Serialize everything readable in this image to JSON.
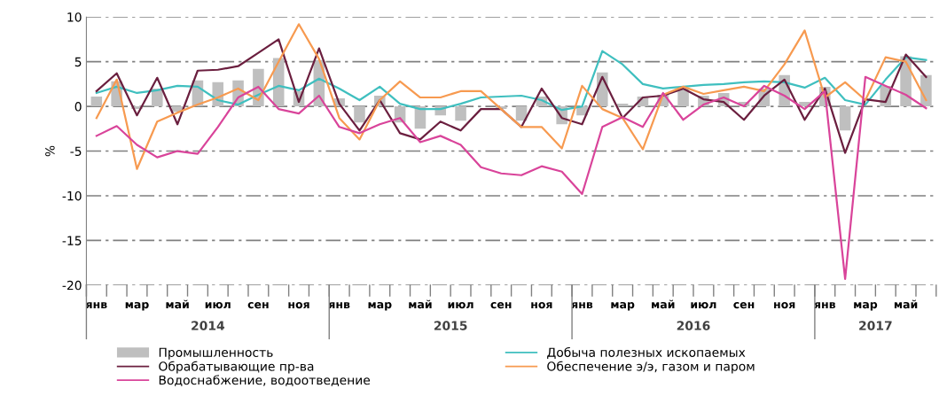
{
  "chart_data": {
    "type": "bar",
    "ylabel": "%",
    "categories": [
      "янв",
      null,
      "мар",
      null,
      "май",
      null,
      "июл",
      null,
      "сен",
      null,
      "ноя",
      null,
      "янв",
      null,
      "мар",
      null,
      "май",
      null,
      "июл",
      null,
      "сен",
      null,
      "ноя",
      null,
      "янв",
      null,
      "мар",
      null,
      "май",
      null,
      "июл",
      null,
      "сен",
      null,
      "ноя",
      null,
      "янв",
      null,
      "мар",
      null,
      "май",
      null
    ],
    "annotations": [
      "2014",
      "2015",
      "2016",
      "2017"
    ],
    "ylim": [
      -20,
      10
    ],
    "yticks": [
      -20,
      -15,
      -10,
      -5,
      0,
      5,
      10
    ],
    "grid": "y",
    "legend": "bottom",
    "series": [
      {
        "name": "Промышленность",
        "color": "#bfbfbf",
        "values": [
          1.1,
          2.8,
          -0.3,
          2.0,
          -0.6,
          2.9,
          2.7,
          2.9,
          4.2,
          5.4,
          1.7,
          5.2,
          0.9,
          -1.8,
          1.2,
          -1.8,
          -2.5,
          -1.0,
          -1.6,
          null,
          -0.3,
          -1.6,
          1.1,
          -2.0,
          -1.0,
          3.8,
          0.3,
          1.1,
          1.3,
          2.0,
          1.2,
          1.5,
          0.5,
          2.0,
          3.5,
          0.5,
          2.2,
          -2.7,
          null,
          2.3,
          5.6,
          3.5
        ]
      },
      {
        "name": "Добыча полезных ископаемых",
        "type": "line",
        "color": "#3fbfbf",
        "values": [
          1.5,
          2.2,
          1.5,
          1.8,
          2.3,
          2.2,
          0.7,
          0.2,
          1.3,
          2.3,
          1.8,
          3.1,
          2.0,
          0.7,
          2.2,
          0.3,
          -0.3,
          -0.3,
          0.3,
          1.0,
          1.1,
          1.2,
          0.7,
          -0.4,
          0.0,
          6.2,
          4.7,
          2.5,
          2.0,
          2.2,
          2.4,
          2.5,
          2.7,
          2.8,
          2.7,
          2.1,
          3.2,
          0.7,
          0.2,
          3.0,
          5.5,
          5.2
        ]
      },
      {
        "name": "Обрабатывающие пр-ва",
        "type": "line",
        "color": "#6b1f3f",
        "values": [
          1.7,
          3.7,
          -1.0,
          3.2,
          -2.0,
          4.0,
          4.1,
          4.5,
          6.0,
          7.5,
          0.5,
          6.5,
          0.3,
          -2.7,
          0.7,
          -3.0,
          -3.7,
          -1.7,
          -2.7,
          -0.3,
          -0.3,
          -2.3,
          2.0,
          -1.3,
          -2.0,
          3.3,
          -1.3,
          1.0,
          1.2,
          2.0,
          0.8,
          0.5,
          -1.5,
          1.2,
          3.0,
          -1.5,
          2.0,
          -5.2,
          0.8,
          0.5,
          5.8,
          3.3
        ]
      },
      {
        "name": "Обеспечение э/э, газом и паром",
        "type": "line",
        "color": "#f79a50",
        "values": [
          -1.3,
          3.0,
          -7.0,
          -1.7,
          -0.7,
          0.2,
          1.0,
          2.0,
          0.7,
          5.0,
          9.2,
          5.3,
          -1.3,
          -3.7,
          0.7,
          2.8,
          1.0,
          1.0,
          1.7,
          1.7,
          -0.3,
          -2.3,
          -2.3,
          -4.7,
          2.3,
          -0.3,
          -1.3,
          -4.8,
          1.3,
          2.2,
          1.4,
          1.8,
          2.2,
          1.7,
          4.7,
          8.5,
          1.0,
          2.7,
          0.7,
          5.5,
          5.0,
          0.7
        ]
      },
      {
        "name": "Водоснабжение, водоотведение",
        "type": "line",
        "color": "#d9449a",
        "values": [
          -3.3,
          -2.2,
          -4.3,
          -5.7,
          -5.0,
          -5.3,
          -2.3,
          1.0,
          2.2,
          -0.3,
          -0.8,
          1.2,
          -2.3,
          -3.0,
          -2.0,
          -1.3,
          -4.0,
          -3.3,
          -4.3,
          -6.8,
          -7.5,
          -7.7,
          -6.7,
          -7.3,
          -9.8,
          -2.3,
          -1.2,
          -2.3,
          1.5,
          -1.5,
          0.2,
          1.0,
          0.0,
          2.3,
          1.2,
          -0.3,
          1.7,
          -19.3,
          3.3,
          2.3,
          1.3,
          -0.2
        ]
      }
    ]
  }
}
